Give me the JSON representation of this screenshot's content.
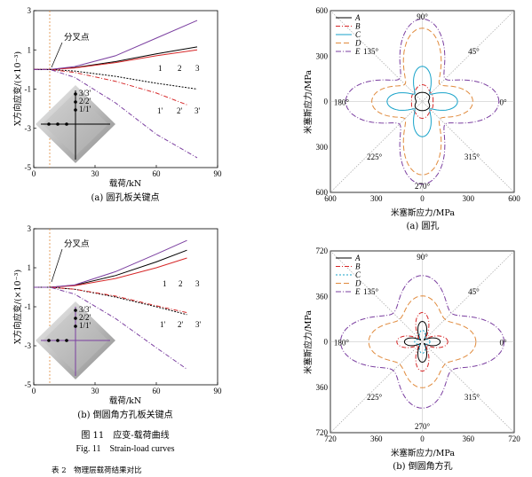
{
  "chart_data": [
    {
      "type": "line",
      "id": "a",
      "ylabel": "X方向应变/(×10⁻³)",
      "xlabel": "载荷/kN",
      "caption": "(a) 圆孔板关键点",
      "xticks": [
        "0",
        "30",
        "60",
        "90"
      ],
      "yticks": [
        "3",
        "1",
        "-1",
        "-3",
        "-5"
      ],
      "xlim": [
        0,
        90
      ],
      "ylim": [
        -5,
        3
      ],
      "bifurcation_label": "分叉点",
      "bifurcation_x": 8,
      "curve_labels": [
        "1",
        "2",
        "3",
        "1'",
        "2'",
        "3'"
      ],
      "inset_labels": [
        "3/3'",
        "2/2'",
        "1/1'"
      ],
      "series": [
        {
          "label": "1",
          "color": "#000000",
          "x": [
            0,
            8,
            20,
            40,
            60,
            80
          ],
          "y": [
            0,
            0,
            0.1,
            0.4,
            0.8,
            1.15
          ]
        },
        {
          "label": "2",
          "color": "#d62728",
          "x": [
            0,
            8,
            20,
            40,
            60,
            80
          ],
          "y": [
            0,
            0,
            0.08,
            0.35,
            0.7,
            1.0
          ]
        },
        {
          "label": "3",
          "color": "#7b3fa0",
          "x": [
            0,
            8,
            20,
            40,
            60,
            80
          ],
          "y": [
            0,
            0,
            0.15,
            0.7,
            1.6,
            2.5
          ]
        },
        {
          "label": "1'",
          "color": "#000000",
          "x": [
            0,
            8,
            20,
            40,
            60,
            80
          ],
          "y": [
            0,
            0,
            -0.08,
            -0.35,
            -0.7,
            -1.0
          ]
        },
        {
          "label": "2'",
          "color": "#d62728",
          "x": [
            0,
            8,
            20,
            40,
            60,
            75
          ],
          "y": [
            0,
            0,
            -0.15,
            -0.6,
            -1.2,
            -1.8
          ]
        },
        {
          "label": "3'",
          "color": "#7b3fa0",
          "x": [
            0,
            8,
            20,
            40,
            60,
            80
          ],
          "y": [
            0,
            0,
            -0.4,
            -1.7,
            -3.3,
            -4.5
          ]
        }
      ]
    },
    {
      "type": "line",
      "id": "b",
      "ylabel": "X方向应变/(×10⁻³)",
      "xlabel": "载荷/kN",
      "caption": "(b) 倒圆角方孔板关键点",
      "xticks": [
        "0",
        "30",
        "60",
        "90"
      ],
      "yticks": [
        "3",
        "1",
        "-1",
        "-3",
        "-5"
      ],
      "xlim": [
        0,
        90
      ],
      "ylim": [
        -5,
        3
      ],
      "bifurcation_label": "分叉点",
      "bifurcation_x": 8,
      "curve_labels": [
        "1",
        "2",
        "3",
        "1'",
        "2'",
        "3'"
      ],
      "inset_labels": [
        "3/3'",
        "2/2'",
        "1/1'"
      ],
      "series": [
        {
          "label": "1",
          "color": "#000000",
          "x": [
            0,
            8,
            20,
            40,
            60,
            75
          ],
          "y": [
            0,
            0,
            0.1,
            0.6,
            1.3,
            1.9
          ]
        },
        {
          "label": "2",
          "color": "#d62728",
          "x": [
            0,
            8,
            20,
            40,
            60,
            75
          ],
          "y": [
            0,
            0,
            0.08,
            0.45,
            1.0,
            1.5
          ]
        },
        {
          "label": "3",
          "color": "#7b3fa0",
          "x": [
            0,
            8,
            20,
            40,
            60,
            75
          ],
          "y": [
            0,
            0,
            0.12,
            0.8,
            1.7,
            2.4
          ]
        },
        {
          "label": "1'",
          "color": "#000000",
          "x": [
            0,
            8,
            20,
            40,
            60,
            75
          ],
          "y": [
            0,
            0,
            -0.1,
            -0.5,
            -1.0,
            -1.4
          ]
        },
        {
          "label": "2'",
          "color": "#d62728",
          "x": [
            0,
            8,
            20,
            40,
            60,
            75
          ],
          "y": [
            0,
            0,
            -0.1,
            -0.45,
            -0.95,
            -1.3
          ]
        },
        {
          "label": "3'",
          "color": "#7b3fa0",
          "x": [
            0,
            8,
            20,
            40,
            60,
            75
          ],
          "y": [
            0,
            0,
            -0.35,
            -1.6,
            -3.1,
            -4.2
          ]
        }
      ]
    },
    {
      "type": "polar",
      "id": "c",
      "ylabel": "米塞斯应力/MPa",
      "xlabel": "米塞斯应力/MPa",
      "caption": "(a) 圆孔",
      "rmax": 600,
      "ticks": [
        "600",
        "300",
        "0",
        "300",
        "600"
      ],
      "angle_labels": [
        "0°",
        "45°",
        "90°",
        "135°",
        "180°",
        "225°",
        "270°",
        "315°"
      ],
      "series": [
        {
          "name": "A",
          "color": "#000000",
          "dash": "none",
          "radius": [
            40,
            60,
            60,
            60,
            40,
            60,
            60,
            60
          ]
        },
        {
          "name": "B",
          "color": "#d62728",
          "dash": "5,2,1,2",
          "radius": [
            70,
            80,
            110,
            80,
            70,
            80,
            110,
            80
          ]
        },
        {
          "name": "C",
          "color": "#17a2c9",
          "dash": "none",
          "radius": [
            230,
            70,
            230,
            70,
            230,
            70,
            230,
            70
          ]
        },
        {
          "name": "D",
          "color": "#e08a3c",
          "dash": "6,3",
          "radius": [
            330,
            160,
            480,
            160,
            330,
            160,
            480,
            160
          ]
        },
        {
          "name": "E",
          "color": "#7b3fa0",
          "dash": "6,2,1,2",
          "radius": [
            500,
            210,
            540,
            210,
            500,
            210,
            540,
            210
          ]
        }
      ]
    },
    {
      "type": "polar",
      "id": "d",
      "ylabel": "米塞斯应力/MPa",
      "xlabel": "米塞斯应力/MPa",
      "caption": "(b) 倒圆角方孔",
      "rmax": 720,
      "ticks": [
        "720",
        "360",
        "0",
        "360",
        "720"
      ],
      "angle_labels": [
        "0°",
        "45°",
        "90°",
        "135°",
        "180°",
        "225°",
        "270°",
        "315°"
      ],
      "series": [
        {
          "name": "A",
          "color": "#000000",
          "dash": "none",
          "radius": [
            140,
            20,
            160,
            20,
            140,
            20,
            160,
            20
          ]
        },
        {
          "name": "B",
          "color": "#d62728",
          "dash": "5,2,1,2",
          "radius": [
            200,
            40,
            230,
            40,
            200,
            40,
            230,
            40
          ]
        },
        {
          "name": "C",
          "color": "#17a2c9",
          "dash": "2,2",
          "radius": [
            60,
            30,
            90,
            30,
            60,
            30,
            90,
            30
          ]
        },
        {
          "name": "D",
          "color": "#e08a3c",
          "dash": "6,3",
          "radius": [
            420,
            250,
            360,
            250,
            420,
            250,
            360,
            250
          ]
        },
        {
          "name": "E",
          "color": "#7b3fa0",
          "dash": "6,2,1,2",
          "radius": [
            640,
            320,
            520,
            320,
            640,
            320,
            520,
            320
          ]
        }
      ]
    }
  ],
  "figure": {
    "title_cn": "图 11　应变-载荷曲线",
    "title_en": "Fig. 11　Strain-load curves",
    "bottom_cut": "表 2　物理层载荷结果对比"
  }
}
